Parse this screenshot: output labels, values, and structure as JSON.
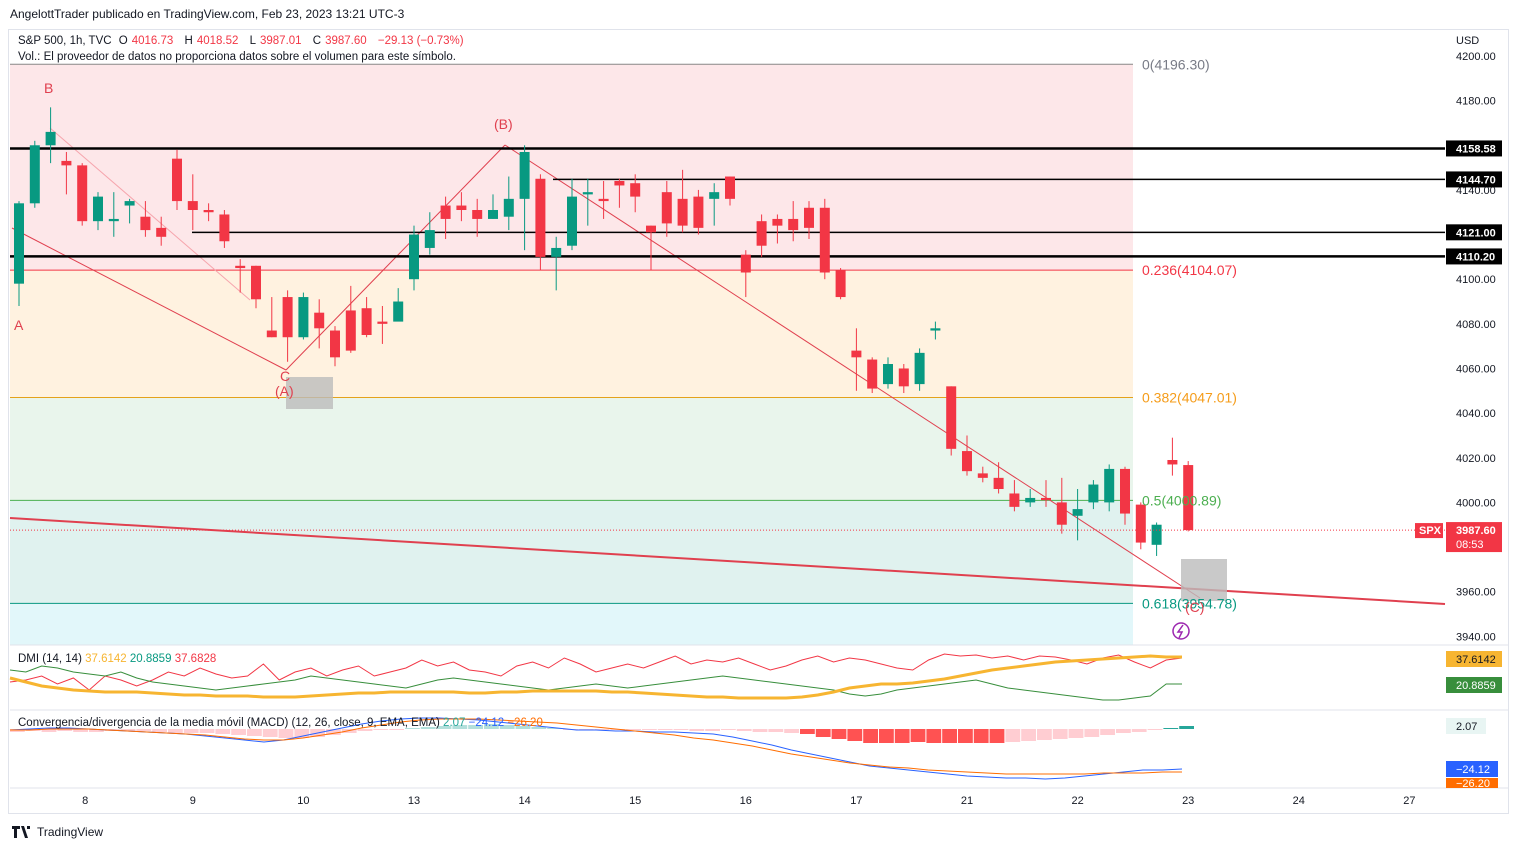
{
  "header": {
    "publisher": "AngelottTrader publicado en TradingView.com, Feb 23, 2023 13:21 UTC-3"
  },
  "symbol_legend": {
    "symbol": "S&P 500, 1h, TVC",
    "o_label": "O",
    "o_value": "4016.73",
    "h_label": "H",
    "h_value": "4018.52",
    "l_label": "L",
    "l_value": "3987.01",
    "c_label": "C",
    "c_value": "3987.60",
    "change": "−29.13 (−0.73%)",
    "volume_note": "Vol.: El proveedor de datos no proporciona datos sobre el volumen para este símbolo."
  },
  "dmi": {
    "label": "DMI (14, 14)",
    "v1": "37.6142",
    "v2": "20.8859",
    "v3": "37.6828",
    "badge1": "37.6142",
    "badge2": "20.8859"
  },
  "macd": {
    "label": "Convergencia/divergencia de la media móvil (MACD) (12, 26, close, 9, EMA, EMA)",
    "v1": "2.07",
    "v2": "−24.12",
    "v3": "−26.20",
    "badge1": "2.07",
    "badge2": "−24.12",
    "badge3": "−26.20"
  },
  "footer": {
    "brand": "TradingView"
  },
  "colors": {
    "up": "#089981",
    "down": "#f23645",
    "trend": "#e0404f",
    "ema": "#f7b531",
    "zone_top": "#fde7e9",
    "zone_2": "#fff2e0",
    "zone_3": "#e9f5ec",
    "zone_4": "#e0f2ef",
    "zone_5": "#e2f7fa"
  },
  "chart_data": {
    "type": "candlestick",
    "currency": "USD",
    "ylim": [
      3932,
      4205
    ],
    "y_ticks": [
      "4200.00",
      "4180.00",
      "4160.00",
      "4140.00",
      "4120.00",
      "4100.00",
      "4080.00",
      "4060.00",
      "4040.00",
      "4020.00",
      "4000.00",
      "3980.00",
      "3960.00",
      "3940.00"
    ],
    "x_ticks": [
      {
        "label": "8",
        "i": 4
      },
      {
        "label": "9",
        "i": 11
      },
      {
        "label": "10",
        "i": 18
      },
      {
        "label": "13",
        "i": 25
      },
      {
        "label": "14",
        "i": 32
      },
      {
        "label": "15",
        "i": 39
      },
      {
        "label": "16",
        "i": 46
      },
      {
        "label": "17",
        "i": 53
      },
      {
        "label": "21",
        "i": 60
      },
      {
        "label": "22",
        "i": 67
      },
      {
        "label": "23",
        "i": 74
      },
      {
        "label": "24",
        "i": 81
      },
      {
        "label": "27",
        "i": 88
      }
    ],
    "candles": [
      [
        4098,
        4134,
        4088,
        4135
      ],
      [
        4134,
        4160,
        4132,
        4162
      ],
      [
        4160,
        4166,
        4152,
        4177
      ],
      [
        4153,
        4151,
        4138,
        4157
      ],
      [
        4151,
        4126,
        4124,
        4152
      ],
      [
        4126,
        4137,
        4122,
        4139
      ],
      [
        4126,
        4127,
        4119,
        4139
      ],
      [
        4133,
        4135,
        4125,
        4136
      ],
      [
        4128,
        4122,
        4119,
        4135
      ],
      [
        4123,
        4119,
        4115,
        4128
      ],
      [
        4154,
        4135,
        4131,
        4158
      ],
      [
        4135,
        4131,
        4122,
        4147
      ],
      [
        4131,
        4130,
        4126,
        4134
      ],
      [
        4129,
        4117,
        4114,
        4131
      ],
      [
        4106,
        4105,
        4094,
        4109
      ],
      [
        4106,
        4091,
        4087,
        4106
      ],
      [
        4077,
        4074,
        4074,
        4092
      ],
      [
        4092,
        4074,
        4063,
        4095
      ],
      [
        4074,
        4092,
        4073,
        4094
      ],
      [
        4085,
        4078,
        4069,
        4091
      ],
      [
        4077,
        4065,
        4061,
        4079
      ],
      [
        4086,
        4068,
        4067,
        4097
      ],
      [
        4087,
        4075,
        4074,
        4092
      ],
      [
        4081,
        4080,
        4071,
        4088
      ],
      [
        4081,
        4090,
        4083,
        4096
      ],
      [
        4100,
        4120,
        4095,
        4124
      ],
      [
        4114,
        4122,
        4111,
        4130
      ],
      [
        4133,
        4127,
        4118,
        4137
      ],
      [
        4133,
        4131,
        4126,
        4139
      ],
      [
        4131,
        4127,
        4119,
        4136
      ],
      [
        4127,
        4131,
        4127,
        4138
      ],
      [
        4128,
        4136,
        4122,
        4146
      ],
      [
        4136,
        4157,
        4113,
        4160
      ],
      [
        4145,
        4110,
        4104,
        4147
      ],
      [
        4110,
        4114,
        4095,
        4119
      ],
      [
        4115,
        4137,
        4113,
        4145
      ],
      [
        4138,
        4139,
        4124,
        4145
      ],
      [
        4136,
        4135,
        4127,
        4144
      ],
      [
        4144,
        4142,
        4132,
        4145
      ],
      [
        4143,
        4137,
        4130,
        4147
      ],
      [
        4124,
        4121,
        4104,
        4124
      ],
      [
        4139,
        4125,
        4119,
        4144
      ],
      [
        4136,
        4124,
        4121,
        4149
      ],
      [
        4137,
        4123,
        4120,
        4140
      ],
      [
        4136,
        4139,
        4124,
        4143
      ],
      [
        4146,
        4136,
        4133,
        4146
      ],
      [
        4111,
        4103,
        4092,
        4113
      ],
      [
        4126,
        4115,
        4110,
        4129
      ],
      [
        4127,
        4124,
        4116,
        4129
      ],
      [
        4127,
        4122,
        4117,
        4135
      ],
      [
        4132,
        4123,
        4118,
        4135
      ],
      [
        4132,
        4103,
        4100,
        4136
      ],
      [
        4104,
        4092,
        4091,
        4105
      ],
      [
        4068,
        4065,
        4050,
        4078
      ],
      [
        4064,
        4051,
        4049,
        4065
      ],
      [
        4053,
        4062,
        4051,
        4065
      ],
      [
        4060,
        4052,
        4049,
        4062
      ],
      [
        4053,
        4067,
        4050,
        4069
      ],
      [
        4077,
        4078,
        4073,
        4081
      ],
      [
        4052,
        4024,
        4021,
        4052
      ],
      [
        4023,
        4014,
        4012,
        4030
      ],
      [
        4013,
        4011,
        4009,
        4016
      ],
      [
        4011,
        4006,
        4004,
        4018
      ],
      [
        4004,
        3998,
        3996,
        4010
      ],
      [
        4000,
        4002,
        3998,
        4006
      ],
      [
        4002,
        4001,
        3998,
        4010
      ],
      [
        4000,
        3990,
        3986,
        4011
      ],
      [
        3994,
        3997,
        3983,
        4006
      ],
      [
        4000,
        4008,
        3997,
        4010
      ],
      [
        4000,
        4015,
        3996,
        4017
      ],
      [
        4015,
        3995,
        3990,
        4016
      ],
      [
        3999,
        3982,
        3979,
        4000
      ],
      [
        3981,
        3990,
        3976,
        3991
      ],
      [
        4019,
        4017,
        4012,
        4029
      ],
      [
        4016.73,
        3987.6,
        3987.01,
        4018.52
      ]
    ]
  },
  "levels": {
    "fib": [
      {
        "label": "0(4196.30)",
        "value": 4196.3
      },
      {
        "label": "0.236(4104.07)",
        "value": 4104.07
      },
      {
        "label": "0.382(4047.01)",
        "value": 4047.01
      },
      {
        "label": "0.5(4000.89)",
        "value": 4000.89
      },
      {
        "label": "0.618(3954.78)",
        "value": 3954.78
      }
    ],
    "horizontal": [
      {
        "label": "4158.58",
        "value": 4158.58
      },
      {
        "label": "4144.70",
        "value": 4144.7
      },
      {
        "label": "4121.00",
        "value": 4121.0
      },
      {
        "label": "4110.20",
        "value": 4110.2
      }
    ],
    "last_price": {
      "symbol": "SPX",
      "price": "3987.60",
      "countdown": "08:53",
      "value": 3987.6
    }
  },
  "waves": {
    "A": "A",
    "B": "B",
    "C": "C",
    "pA": "(A)",
    "pB": "(B)",
    "pC": "(C)"
  }
}
